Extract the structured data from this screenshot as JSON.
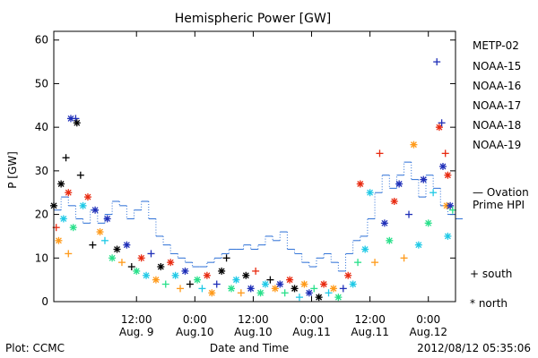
{
  "chart_data": {
    "type": "scatter",
    "title": "Hemispheric Power [GW]",
    "ylabel": "P [GW]",
    "xlabel": "Date and Time",
    "ylim": [
      0,
      62
    ],
    "yticks": [
      0,
      10,
      20,
      30,
      40,
      50,
      60
    ],
    "xlim": [
      "2012-08-08T19:00",
      "2012-08-12T05:35"
    ],
    "xticks": [
      {
        "time": "2012-08-09T12:00",
        "line1": "12:00",
        "line2": "Aug. 9"
      },
      {
        "time": "2012-08-10T00:00",
        "line1": "0:00",
        "line2": "Aug.10"
      },
      {
        "time": "2012-08-10T12:00",
        "line1": "12:00",
        "line2": "Aug.10"
      },
      {
        "time": "2012-08-11T00:00",
        "line1": "0:00",
        "line2": "Aug.11"
      },
      {
        "time": "2012-08-11T12:00",
        "line1": "12:00",
        "line2": "Aug.11"
      },
      {
        "time": "2012-08-12T00:00",
        "line1": "0:00",
        "line2": "Aug.12"
      }
    ],
    "legend": {
      "placement": "right",
      "satellites": [
        "METP-02",
        "NOAA-15",
        "NOAA-16",
        "NOAA-17",
        "NOAA-18",
        "NOAA-19"
      ],
      "ovation_line1": "— Ovation",
      "ovation_line2": "Prime HPI",
      "south_label": "+ south",
      "north_label": "* north"
    },
    "colors": {
      "METP-02": "#000000",
      "NOAA-15": "#1f2fb8",
      "NOAA-16": "#1fc9e6",
      "NOAA-17": "#28e08a",
      "NOAA-18": "#ff9a1a",
      "NOAA-19": "#e82a10",
      "ovation": "#2a6ed6"
    },
    "ovation_series": [
      {
        "t": "2012-08-08T19:00",
        "v": 21
      },
      {
        "t": "2012-08-08T20:30",
        "v": 24
      },
      {
        "t": "2012-08-08T22:00",
        "v": 22
      },
      {
        "t": "2012-08-08T23:30",
        "v": 19
      },
      {
        "t": "2012-08-09T01:00",
        "v": 18
      },
      {
        "t": "2012-08-09T02:30",
        "v": 21
      },
      {
        "t": "2012-08-09T04:00",
        "v": 18
      },
      {
        "t": "2012-08-09T05:30",
        "v": 20
      },
      {
        "t": "2012-08-09T07:00",
        "v": 23
      },
      {
        "t": "2012-08-09T08:30",
        "v": 22
      },
      {
        "t": "2012-08-09T10:00",
        "v": 19
      },
      {
        "t": "2012-08-09T11:30",
        "v": 21
      },
      {
        "t": "2012-08-09T13:00",
        "v": 23
      },
      {
        "t": "2012-08-09T14:30",
        "v": 19
      },
      {
        "t": "2012-08-09T16:00",
        "v": 15
      },
      {
        "t": "2012-08-09T17:30",
        "v": 13
      },
      {
        "t": "2012-08-09T19:00",
        "v": 11
      },
      {
        "t": "2012-08-09T20:30",
        "v": 10
      },
      {
        "t": "2012-08-09T22:00",
        "v": 9
      },
      {
        "t": "2012-08-09T23:30",
        "v": 8
      },
      {
        "t": "2012-08-10T01:00",
        "v": 8
      },
      {
        "t": "2012-08-10T02:30",
        "v": 9
      },
      {
        "t": "2012-08-10T04:00",
        "v": 10
      },
      {
        "t": "2012-08-10T05:30",
        "v": 11
      },
      {
        "t": "2012-08-10T07:00",
        "v": 12
      },
      {
        "t": "2012-08-10T08:30",
        "v": 12
      },
      {
        "t": "2012-08-10T10:00",
        "v": 13
      },
      {
        "t": "2012-08-10T11:30",
        "v": 12
      },
      {
        "t": "2012-08-10T13:00",
        "v": 13
      },
      {
        "t": "2012-08-10T14:30",
        "v": 15
      },
      {
        "t": "2012-08-10T16:00",
        "v": 14
      },
      {
        "t": "2012-08-10T17:30",
        "v": 16
      },
      {
        "t": "2012-08-10T19:00",
        "v": 12
      },
      {
        "t": "2012-08-10T20:30",
        "v": 11
      },
      {
        "t": "2012-08-10T22:00",
        "v": 9
      },
      {
        "t": "2012-08-10T23:30",
        "v": 8
      },
      {
        "t": "2012-08-11T01:00",
        "v": 10
      },
      {
        "t": "2012-08-11T02:30",
        "v": 11
      },
      {
        "t": "2012-08-11T04:00",
        "v": 9
      },
      {
        "t": "2012-08-11T05:30",
        "v": 7
      },
      {
        "t": "2012-08-11T07:00",
        "v": 11
      },
      {
        "t": "2012-08-11T08:30",
        "v": 14
      },
      {
        "t": "2012-08-11T10:00",
        "v": 15
      },
      {
        "t": "2012-08-11T11:30",
        "v": 19
      },
      {
        "t": "2012-08-11T13:00",
        "v": 25
      },
      {
        "t": "2012-08-11T14:30",
        "v": 29
      },
      {
        "t": "2012-08-11T16:00",
        "v": 26
      },
      {
        "t": "2012-08-11T17:30",
        "v": 29
      },
      {
        "t": "2012-08-11T19:00",
        "v": 32
      },
      {
        "t": "2012-08-11T20:30",
        "v": 28
      },
      {
        "t": "2012-08-11T22:00",
        "v": 24
      },
      {
        "t": "2012-08-11T23:30",
        "v": 29
      },
      {
        "t": "2012-08-12T01:00",
        "v": 26
      },
      {
        "t": "2012-08-12T02:30",
        "v": 22
      },
      {
        "t": "2012-08-12T04:00",
        "v": 20
      },
      {
        "t": "2012-08-12T05:35",
        "v": 19
      }
    ],
    "points": [
      {
        "t": "2012-08-08T19:00",
        "v": 22,
        "sat": "METP-02",
        "hemi": "north"
      },
      {
        "t": "2012-08-08T20:30",
        "v": 27,
        "sat": "METP-02",
        "hemi": "north"
      },
      {
        "t": "2012-08-08T21:30",
        "v": 33,
        "sat": "METP-02",
        "hemi": "south"
      },
      {
        "t": "2012-08-08T22:30",
        "v": 42,
        "sat": "NOAA-15",
        "hemi": "north"
      },
      {
        "t": "2012-08-08T23:30",
        "v": 42,
        "sat": "NOAA-15",
        "hemi": "south"
      },
      {
        "t": "2012-08-08T23:45",
        "v": 41,
        "sat": "METP-02",
        "hemi": "north"
      },
      {
        "t": "2012-08-09T00:30",
        "v": 29,
        "sat": "METP-02",
        "hemi": "south"
      },
      {
        "t": "2012-08-08T22:00",
        "v": 25,
        "sat": "NOAA-19",
        "hemi": "north"
      },
      {
        "t": "2012-08-08T19:30",
        "v": 17,
        "sat": "NOAA-19",
        "hemi": "south"
      },
      {
        "t": "2012-08-08T20:00",
        "v": 14,
        "sat": "NOAA-18",
        "hemi": "north"
      },
      {
        "t": "2012-08-08T21:00",
        "v": 19,
        "sat": "NOAA-16",
        "hemi": "north"
      },
      {
        "t": "2012-08-08T22:00",
        "v": 11,
        "sat": "NOAA-18",
        "hemi": "south"
      },
      {
        "t": "2012-08-08T23:00",
        "v": 17,
        "sat": "NOAA-17",
        "hemi": "north"
      },
      {
        "t": "2012-08-09T01:00",
        "v": 22,
        "sat": "NOAA-16",
        "hemi": "north"
      },
      {
        "t": "2012-08-09T02:00",
        "v": 24,
        "sat": "NOAA-19",
        "hemi": "north"
      },
      {
        "t": "2012-08-09T03:00",
        "v": 13,
        "sat": "METP-02",
        "hemi": "south"
      },
      {
        "t": "2012-08-09T03:30",
        "v": 21,
        "sat": "NOAA-15",
        "hemi": "north"
      },
      {
        "t": "2012-08-09T04:30",
        "v": 16,
        "sat": "NOAA-18",
        "hemi": "north"
      },
      {
        "t": "2012-08-09T05:30",
        "v": 14,
        "sat": "NOAA-16",
        "hemi": "south"
      },
      {
        "t": "2012-08-09T06:00",
        "v": 19,
        "sat": "NOAA-15",
        "hemi": "north"
      },
      {
        "t": "2012-08-09T07:00",
        "v": 10,
        "sat": "NOAA-17",
        "hemi": "north"
      },
      {
        "t": "2012-08-09T08:00",
        "v": 12,
        "sat": "METP-02",
        "hemi": "north"
      },
      {
        "t": "2012-08-09T09:00",
        "v": 9,
        "sat": "NOAA-18",
        "hemi": "south"
      },
      {
        "t": "2012-08-09T10:00",
        "v": 13,
        "sat": "NOAA-15",
        "hemi": "north"
      },
      {
        "t": "2012-08-09T11:00",
        "v": 8,
        "sat": "METP-02",
        "hemi": "south"
      },
      {
        "t": "2012-08-09T12:00",
        "v": 7,
        "sat": "NOAA-17",
        "hemi": "north"
      },
      {
        "t": "2012-08-09T13:00",
        "v": 10,
        "sat": "NOAA-19",
        "hemi": "north"
      },
      {
        "t": "2012-08-09T14:00",
        "v": 6,
        "sat": "NOAA-16",
        "hemi": "north"
      },
      {
        "t": "2012-08-09T15:00",
        "v": 11,
        "sat": "NOAA-15",
        "hemi": "south"
      },
      {
        "t": "2012-08-09T16:00",
        "v": 5,
        "sat": "NOAA-18",
        "hemi": "north"
      },
      {
        "t": "2012-08-09T17:00",
        "v": 8,
        "sat": "METP-02",
        "hemi": "north"
      },
      {
        "t": "2012-08-09T18:00",
        "v": 4,
        "sat": "NOAA-17",
        "hemi": "south"
      },
      {
        "t": "2012-08-09T19:00",
        "v": 9,
        "sat": "NOAA-19",
        "hemi": "north"
      },
      {
        "t": "2012-08-09T20:00",
        "v": 6,
        "sat": "NOAA-16",
        "hemi": "north"
      },
      {
        "t": "2012-08-09T21:00",
        "v": 3,
        "sat": "NOAA-18",
        "hemi": "south"
      },
      {
        "t": "2012-08-09T22:00",
        "v": 7,
        "sat": "NOAA-15",
        "hemi": "north"
      },
      {
        "t": "2012-08-09T23:00",
        "v": 4,
        "sat": "METP-02",
        "hemi": "south"
      },
      {
        "t": "2012-08-10T00:30",
        "v": 5,
        "sat": "NOAA-17",
        "hemi": "north"
      },
      {
        "t": "2012-08-10T01:30",
        "v": 3,
        "sat": "NOAA-16",
        "hemi": "south"
      },
      {
        "t": "2012-08-10T02:30",
        "v": 6,
        "sat": "NOAA-19",
        "hemi": "north"
      },
      {
        "t": "2012-08-10T03:30",
        "v": 2,
        "sat": "NOAA-18",
        "hemi": "north"
      },
      {
        "t": "2012-08-10T04:30",
        "v": 4,
        "sat": "NOAA-15",
        "hemi": "south"
      },
      {
        "t": "2012-08-10T05:30",
        "v": 7,
        "sat": "METP-02",
        "hemi": "north"
      },
      {
        "t": "2012-08-10T06:30",
        "v": 10,
        "sat": "METP-02",
        "hemi": "south"
      },
      {
        "t": "2012-08-10T07:30",
        "v": 3,
        "sat": "NOAA-17",
        "hemi": "north"
      },
      {
        "t": "2012-08-10T08:30",
        "v": 5,
        "sat": "NOAA-16",
        "hemi": "north"
      },
      {
        "t": "2012-08-10T09:30",
        "v": 2,
        "sat": "NOAA-18",
        "hemi": "south"
      },
      {
        "t": "2012-08-10T10:30",
        "v": 6,
        "sat": "METP-02",
        "hemi": "north"
      },
      {
        "t": "2012-08-10T11:30",
        "v": 3,
        "sat": "NOAA-15",
        "hemi": "north"
      },
      {
        "t": "2012-08-10T12:30",
        "v": 7,
        "sat": "NOAA-19",
        "hemi": "south"
      },
      {
        "t": "2012-08-10T13:30",
        "v": 2,
        "sat": "NOAA-17",
        "hemi": "north"
      },
      {
        "t": "2012-08-10T14:30",
        "v": 4,
        "sat": "NOAA-16",
        "hemi": "north"
      },
      {
        "t": "2012-08-10T15:30",
        "v": 5,
        "sat": "METP-02",
        "hemi": "south"
      },
      {
        "t": "2012-08-10T16:30",
        "v": 3,
        "sat": "NOAA-18",
        "hemi": "north"
      },
      {
        "t": "2012-08-10T17:30",
        "v": 4,
        "sat": "NOAA-15",
        "hemi": "north"
      },
      {
        "t": "2012-08-10T18:30",
        "v": 2,
        "sat": "NOAA-17",
        "hemi": "south"
      },
      {
        "t": "2012-08-10T19:30",
        "v": 5,
        "sat": "NOAA-19",
        "hemi": "north"
      },
      {
        "t": "2012-08-10T20:30",
        "v": 3,
        "sat": "METP-02",
        "hemi": "north"
      },
      {
        "t": "2012-08-10T21:30",
        "v": 1,
        "sat": "NOAA-16",
        "hemi": "south"
      },
      {
        "t": "2012-08-10T22:30",
        "v": 4,
        "sat": "NOAA-18",
        "hemi": "north"
      },
      {
        "t": "2012-08-10T23:30",
        "v": 2,
        "sat": "NOAA-15",
        "hemi": "north"
      },
      {
        "t": "2012-08-11T00:30",
        "v": 3,
        "sat": "NOAA-17",
        "hemi": "south"
      },
      {
        "t": "2012-08-11T01:30",
        "v": 1,
        "sat": "METP-02",
        "hemi": "north"
      },
      {
        "t": "2012-08-11T02:30",
        "v": 4,
        "sat": "NOAA-19",
        "hemi": "north"
      },
      {
        "t": "2012-08-11T03:30",
        "v": 2,
        "sat": "NOAA-16",
        "hemi": "south"
      },
      {
        "t": "2012-08-11T04:30",
        "v": 3,
        "sat": "NOAA-18",
        "hemi": "north"
      },
      {
        "t": "2012-08-11T05:30",
        "v": 1,
        "sat": "NOAA-17",
        "hemi": "north"
      },
      {
        "t": "2012-08-11T06:30",
        "v": 3,
        "sat": "NOAA-15",
        "hemi": "south"
      },
      {
        "t": "2012-08-11T07:30",
        "v": 6,
        "sat": "NOAA-19",
        "hemi": "north"
      },
      {
        "t": "2012-08-11T08:30",
        "v": 4,
        "sat": "NOAA-16",
        "hemi": "north"
      },
      {
        "t": "2012-08-11T09:30",
        "v": 9,
        "sat": "NOAA-17",
        "hemi": "south"
      },
      {
        "t": "2012-08-11T10:00",
        "v": 27,
        "sat": "NOAA-19",
        "hemi": "north"
      },
      {
        "t": "2012-08-11T11:00",
        "v": 12,
        "sat": "NOAA-16",
        "hemi": "north"
      },
      {
        "t": "2012-08-11T12:00",
        "v": 25,
        "sat": "NOAA-16",
        "hemi": "north"
      },
      {
        "t": "2012-08-11T13:00",
        "v": 9,
        "sat": "NOAA-18",
        "hemi": "south"
      },
      {
        "t": "2012-08-11T14:00",
        "v": 34,
        "sat": "NOAA-19",
        "hemi": "south"
      },
      {
        "t": "2012-08-11T15:00",
        "v": 18,
        "sat": "NOAA-15",
        "hemi": "north"
      },
      {
        "t": "2012-08-11T16:00",
        "v": 14,
        "sat": "NOAA-17",
        "hemi": "north"
      },
      {
        "t": "2012-08-11T17:00",
        "v": 23,
        "sat": "NOAA-19",
        "hemi": "north"
      },
      {
        "t": "2012-08-11T18:00",
        "v": 27,
        "sat": "NOAA-15",
        "hemi": "north"
      },
      {
        "t": "2012-08-11T19:00",
        "v": 10,
        "sat": "NOAA-18",
        "hemi": "south"
      },
      {
        "t": "2012-08-11T20:00",
        "v": 20,
        "sat": "NOAA-15",
        "hemi": "south"
      },
      {
        "t": "2012-08-11T21:00",
        "v": 36,
        "sat": "NOAA-18",
        "hemi": "north"
      },
      {
        "t": "2012-08-11T22:00",
        "v": 13,
        "sat": "NOAA-16",
        "hemi": "north"
      },
      {
        "t": "2012-08-11T23:00",
        "v": 28,
        "sat": "NOAA-15",
        "hemi": "north"
      },
      {
        "t": "2012-08-12T00:00",
        "v": 18,
        "sat": "NOAA-17",
        "hemi": "north"
      },
      {
        "t": "2012-08-12T01:00",
        "v": 25,
        "sat": "NOAA-16",
        "hemi": "south"
      },
      {
        "t": "2012-08-12T01:45",
        "v": 55,
        "sat": "NOAA-15",
        "hemi": "south"
      },
      {
        "t": "2012-08-12T02:15",
        "v": 40,
        "sat": "NOAA-19",
        "hemi": "north"
      },
      {
        "t": "2012-08-12T02:45",
        "v": 41,
        "sat": "NOAA-15",
        "hemi": "south"
      },
      {
        "t": "2012-08-12T03:00",
        "v": 31,
        "sat": "NOAA-15",
        "hemi": "north"
      },
      {
        "t": "2012-08-12T03:30",
        "v": 34,
        "sat": "NOAA-19",
        "hemi": "south"
      },
      {
        "t": "2012-08-12T03:45",
        "v": 22,
        "sat": "NOAA-18",
        "hemi": "north"
      },
      {
        "t": "2012-08-12T04:00",
        "v": 29,
        "sat": "NOAA-19",
        "hemi": "north"
      },
      {
        "t": "2012-08-12T04:30",
        "v": 22,
        "sat": "NOAA-15",
        "hemi": "north"
      },
      {
        "t": "2012-08-12T04:00",
        "v": 15,
        "sat": "NOAA-16",
        "hemi": "north"
      },
      {
        "t": "2012-08-12T05:00",
        "v": 21,
        "sat": "NOAA-17",
        "hemi": "south"
      }
    ]
  },
  "footer": {
    "plot_credit": "Plot: CCMC",
    "timestamp": "2012/08/12 05:35:06"
  }
}
